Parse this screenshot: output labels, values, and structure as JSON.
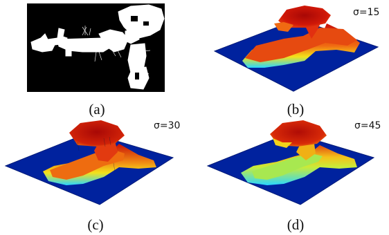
{
  "panels": [
    {
      "id": "a",
      "caption": "(a)",
      "sigma_label": ""
    },
    {
      "id": "b",
      "caption": "(b)",
      "sigma_label": "σ=15"
    },
    {
      "id": "c",
      "caption": "(c)",
      "sigma_label": "σ=30"
    },
    {
      "id": "d",
      "caption": "(d)",
      "sigma_label": "σ=45"
    }
  ],
  "colors": {
    "floor": "#00229e",
    "floor_edge": "#001a78",
    "map_bg": "#000000",
    "map_free": "#ffffff",
    "jet_low": "#2ad6ff",
    "jet_mid": "#f4e21a",
    "jet_high": "#c81008"
  }
}
